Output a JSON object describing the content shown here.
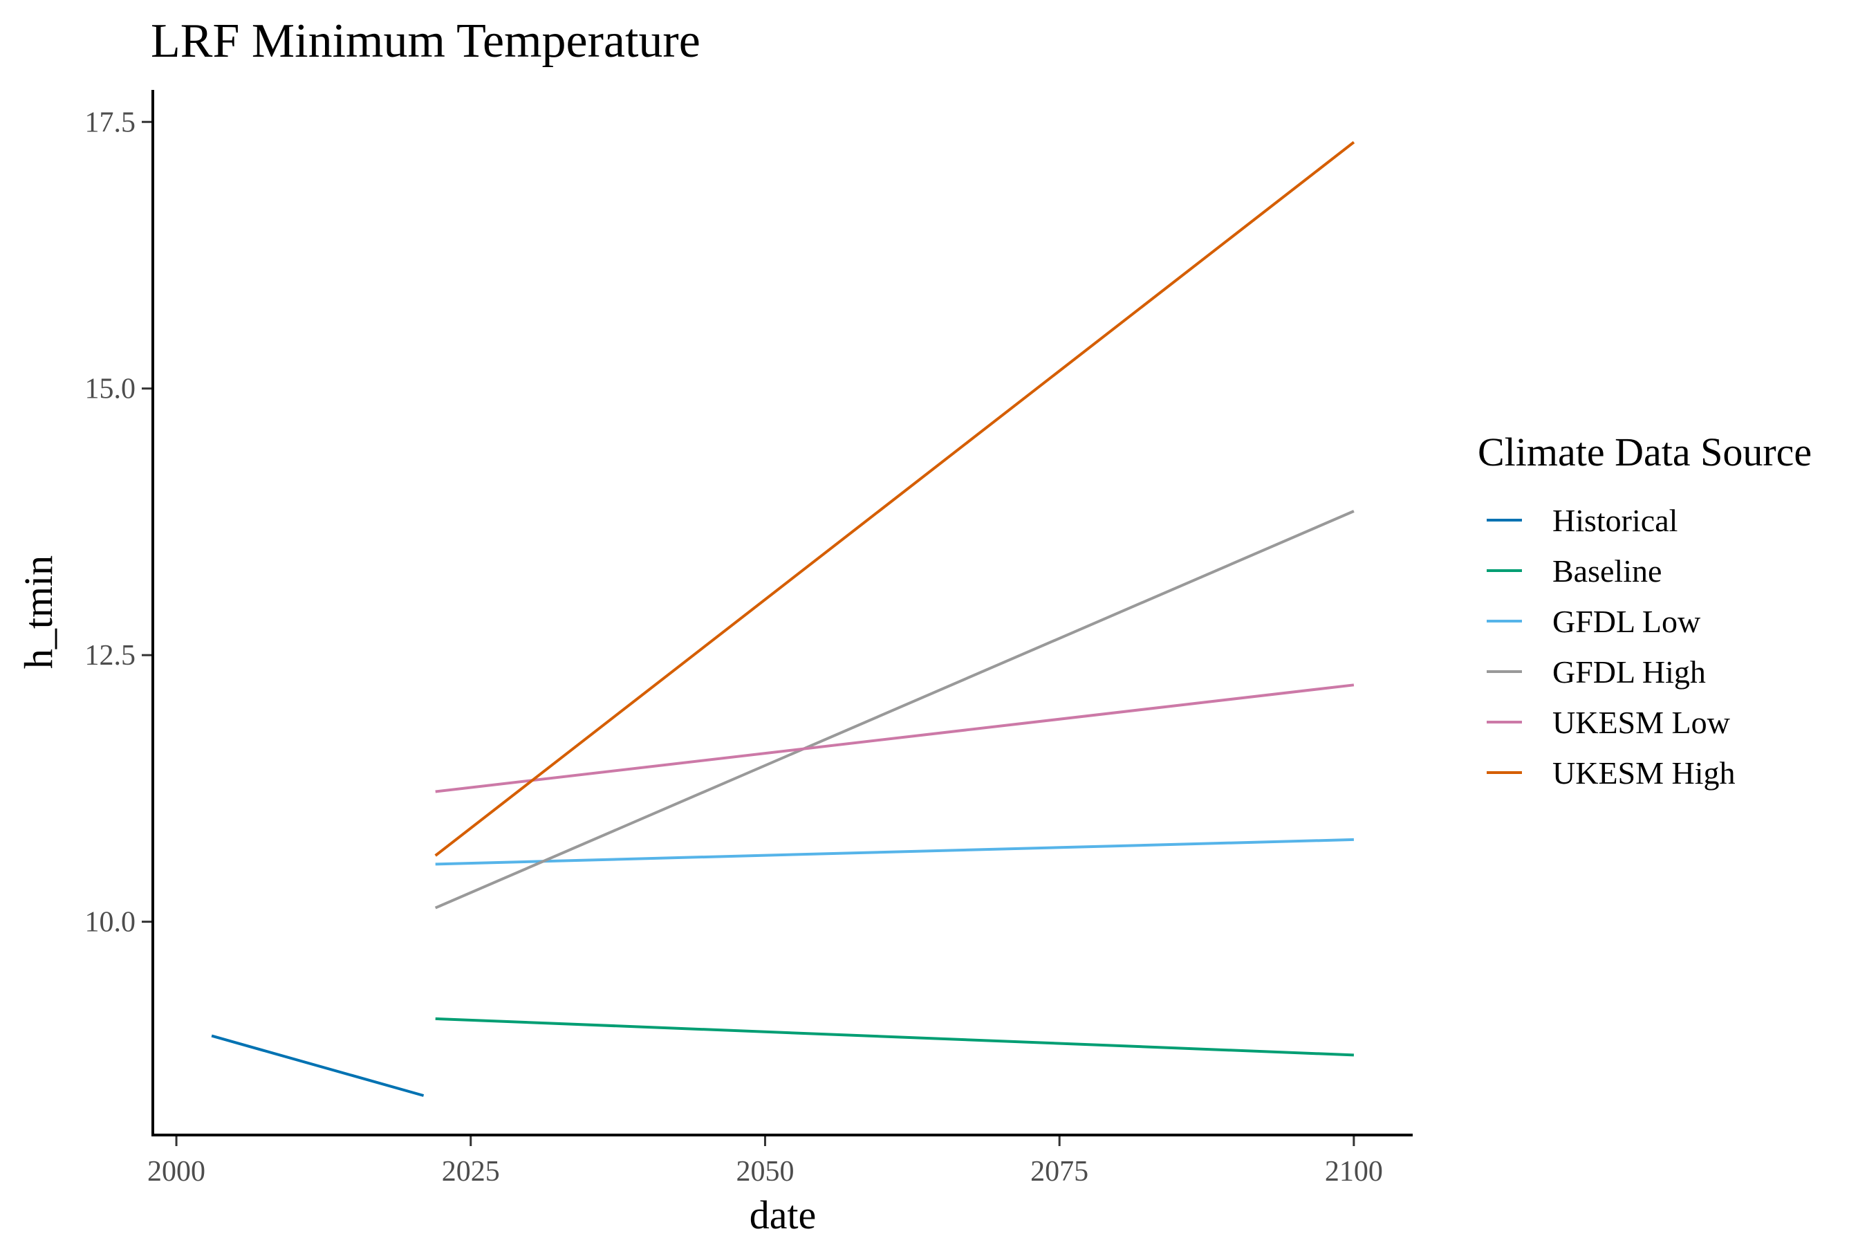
{
  "chart_data": {
    "type": "line",
    "title": "LRF Minimum Temperature",
    "xlabel": "date",
    "ylabel": "h_tmin",
    "xlim": [
      1998,
      2105
    ],
    "ylim": [
      8.0,
      17.8
    ],
    "x_ticks": [
      2000,
      2025,
      2050,
      2075,
      2100
    ],
    "x_tick_labels": [
      "2000",
      "2025",
      "2050",
      "2075",
      "2100"
    ],
    "y_ticks": [
      10.0,
      12.5,
      15.0,
      17.5
    ],
    "y_tick_labels": [
      "10.0",
      "12.5",
      "15.0",
      "17.5"
    ],
    "grid": false,
    "legend": {
      "title": "Climate Data Source",
      "position": "right"
    },
    "series": [
      {
        "name": "Historical",
        "color": "#0072B2",
        "x": [
          2003,
          2021
        ],
        "y": [
          8.93,
          8.37
        ]
      },
      {
        "name": "Baseline",
        "color": "#009E73",
        "x": [
          2022,
          2100
        ],
        "y": [
          9.09,
          8.75
        ]
      },
      {
        "name": "GFDL Low",
        "color": "#56B4E9",
        "x": [
          2022,
          2100
        ],
        "y": [
          10.54,
          10.77
        ]
      },
      {
        "name": "GFDL High",
        "color": "#999999",
        "x": [
          2022,
          2100
        ],
        "y": [
          10.13,
          13.85
        ]
      },
      {
        "name": "UKESM Low",
        "color": "#CC79A7",
        "x": [
          2022,
          2100
        ],
        "y": [
          11.22,
          12.22
        ]
      },
      {
        "name": "UKESM High",
        "color": "#D55E00",
        "x": [
          2022,
          2100
        ],
        "y": [
          10.62,
          17.31
        ]
      }
    ]
  }
}
